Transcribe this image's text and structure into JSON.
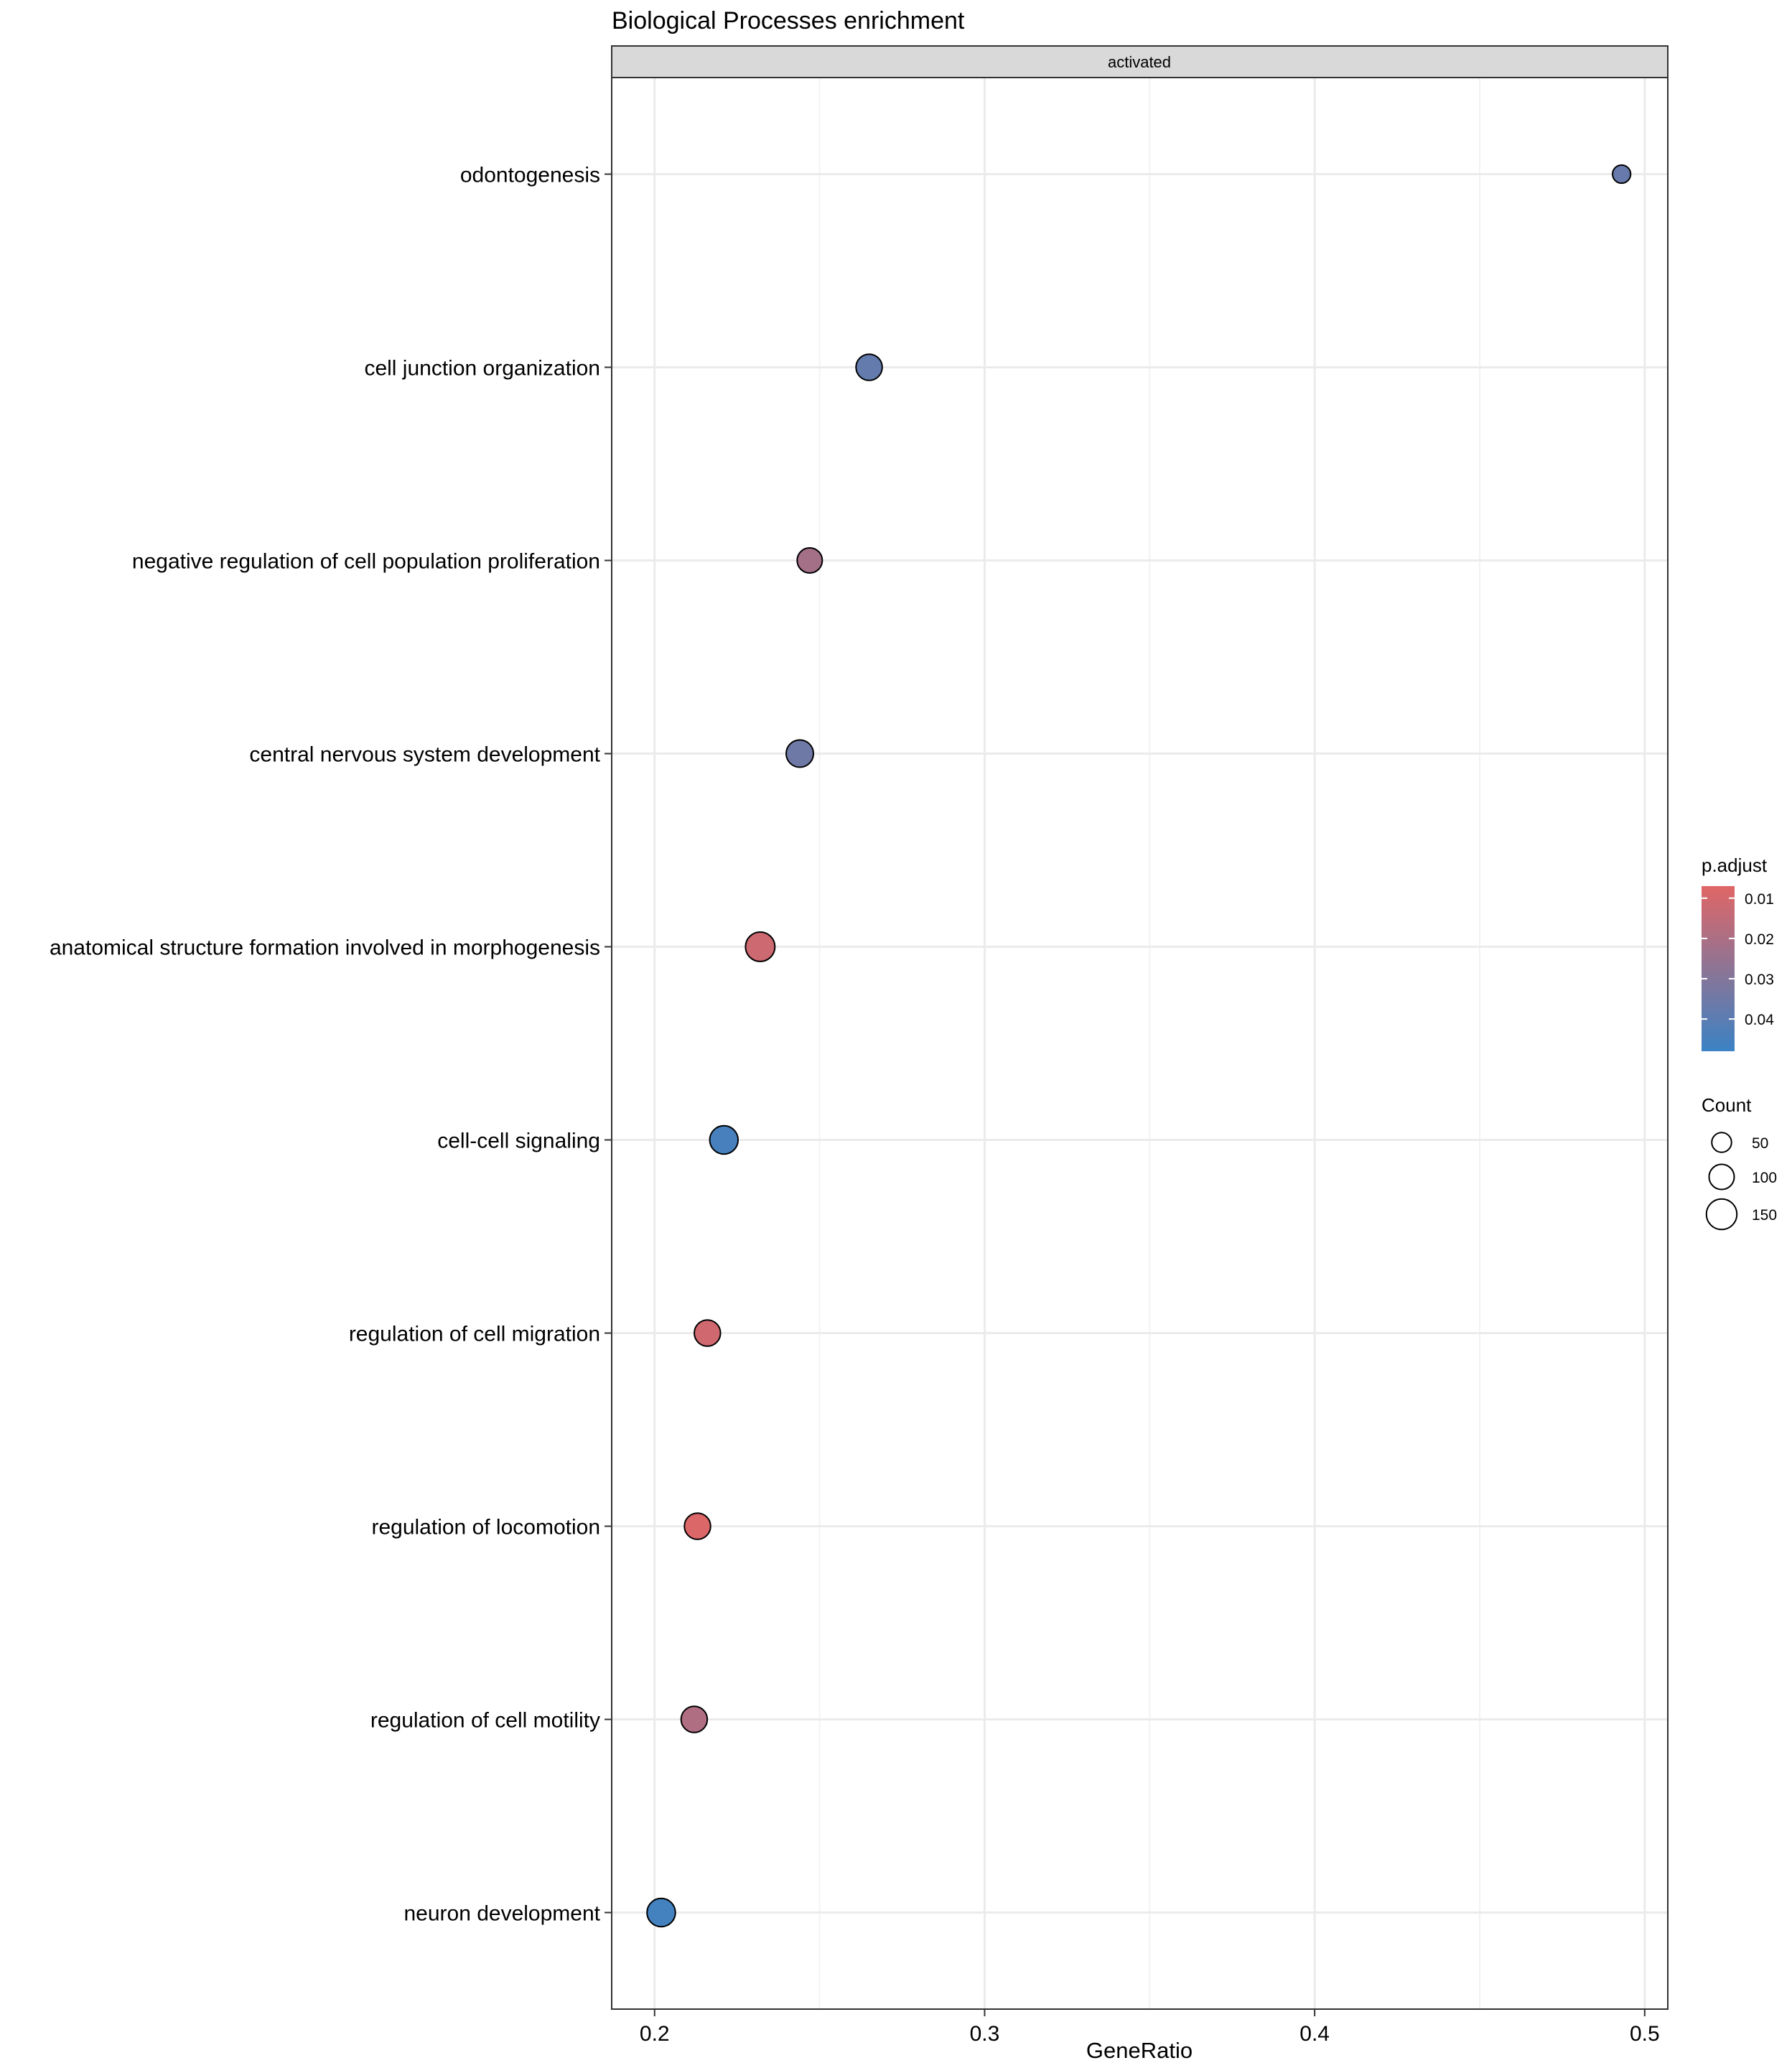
{
  "chart_data": {
    "type": "scatter",
    "title": "Biological Processes enrichment",
    "facet": "activated",
    "xlabel": "GeneRatio",
    "ylabel": "",
    "xlim": [
      0.187,
      0.507
    ],
    "xticks": [
      0.2,
      0.3,
      0.4,
      0.5
    ],
    "xtick_labels": [
      "0.2",
      "0.3",
      "0.4",
      "0.5"
    ],
    "grid": true,
    "legend_position": "right",
    "points": [
      {
        "term": "odontogenesis",
        "gene_ratio": 0.493,
        "count": 35,
        "p_adjust": 0.037
      },
      {
        "term": "cell junction organization",
        "gene_ratio": 0.265,
        "count": 110,
        "p_adjust": 0.038
      },
      {
        "term": "negative regulation of cell population proliferation",
        "gene_ratio": 0.247,
        "count": 100,
        "p_adjust": 0.022
      },
      {
        "term": "central nervous system development",
        "gene_ratio": 0.244,
        "count": 120,
        "p_adjust": 0.035
      },
      {
        "term": "anatomical structure formation involved in morphogenesis",
        "gene_ratio": 0.232,
        "count": 140,
        "p_adjust": 0.012
      },
      {
        "term": "cell-cell signaling",
        "gene_ratio": 0.221,
        "count": 130,
        "p_adjust": 0.045
      },
      {
        "term": "regulation of cell migration",
        "gene_ratio": 0.216,
        "count": 110,
        "p_adjust": 0.011
      },
      {
        "term": "regulation of locomotion",
        "gene_ratio": 0.213,
        "count": 110,
        "p_adjust": 0.008
      },
      {
        "term": "regulation of cell motility",
        "gene_ratio": 0.212,
        "count": 110,
        "p_adjust": 0.019
      },
      {
        "term": "neuron development",
        "gene_ratio": 0.202,
        "count": 130,
        "p_adjust": 0.046
      }
    ],
    "color_legend": {
      "title": "p.adjust",
      "range": [
        0.007,
        0.048
      ],
      "low_color": "#E06666",
      "high_color": "#3B82C4",
      "ticks": [
        0.01,
        0.02,
        0.03,
        0.04
      ],
      "tick_labels": [
        "0.01",
        "0.02",
        "0.03",
        "0.04"
      ]
    },
    "size_legend": {
      "title": "Count",
      "values": [
        50,
        100,
        150
      ],
      "labels": [
        "50",
        "100",
        "150"
      ]
    }
  }
}
